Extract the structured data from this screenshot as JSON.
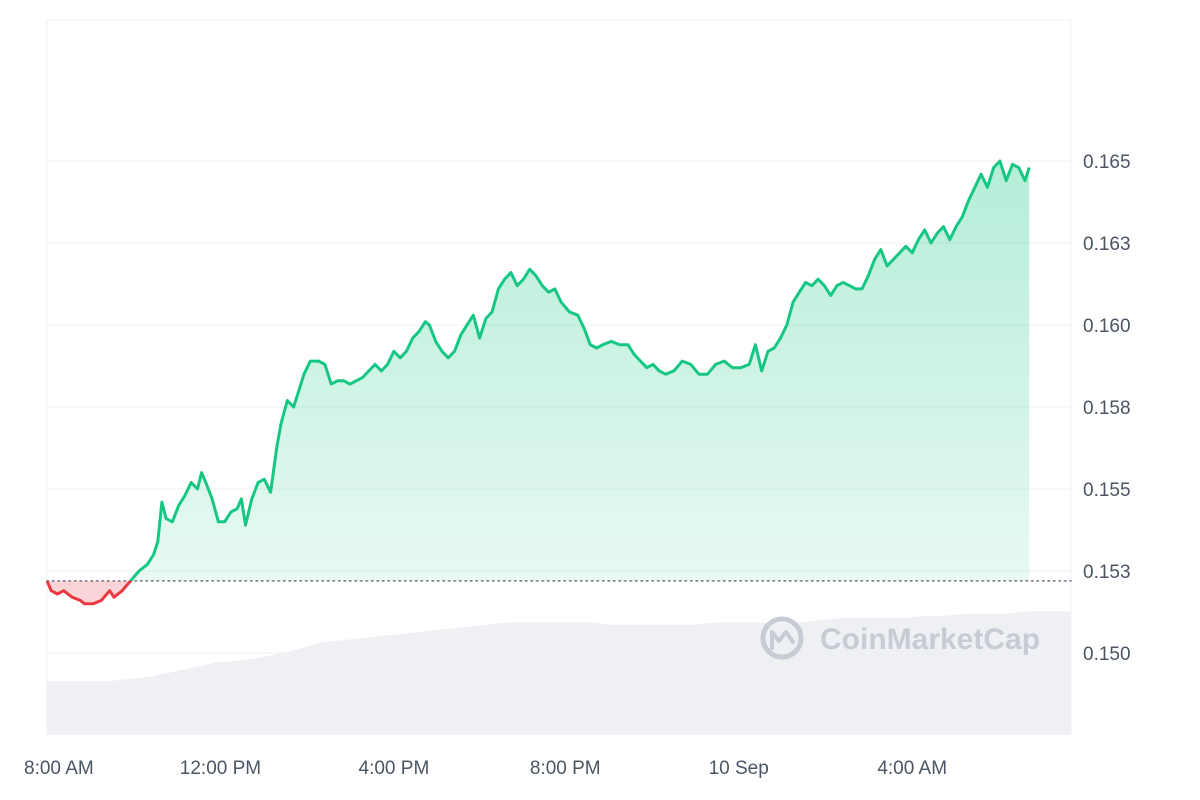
{
  "chart_data": {
    "type": "area",
    "watermark": "CoinMarketCap",
    "baseline": 0.1522,
    "ylim": [
      0.1475,
      0.1693
    ],
    "y_ticks": [
      {
        "value": 0.15,
        "label": "0.150"
      },
      {
        "value": 0.1525,
        "label": "0.153"
      },
      {
        "value": 0.155,
        "label": "0.155"
      },
      {
        "value": 0.1575,
        "label": "0.158"
      },
      {
        "value": 0.16,
        "label": "0.160"
      },
      {
        "value": 0.1625,
        "label": "0.163"
      },
      {
        "value": 0.165,
        "label": "0.165"
      }
    ],
    "xlim": [
      0,
      24.5
    ],
    "x_ticks": [
      {
        "value": 0,
        "label": "8:00 AM"
      },
      {
        "value": 4.15,
        "label": "12:00 PM"
      },
      {
        "value": 8.3,
        "label": "4:00 PM"
      },
      {
        "value": 12.4,
        "label": "8:00 PM"
      },
      {
        "value": 16.55,
        "label": "10 Sep"
      },
      {
        "value": 20.7,
        "label": "4:00 AM"
      }
    ],
    "colors": {
      "up": "#16c784",
      "down": "#ea3943",
      "grid": "#eff2f5",
      "volume": "#eef0f4",
      "text": "#4b5563"
    },
    "series": [
      {
        "values": [
          [
            0.0,
            0.1522
          ],
          [
            0.1,
            0.1519
          ],
          [
            0.25,
            0.1518
          ],
          [
            0.4,
            0.1519
          ],
          [
            0.6,
            0.1517
          ],
          [
            0.8,
            0.1516
          ],
          [
            0.9,
            0.1515
          ],
          [
            1.1,
            0.1515
          ],
          [
            1.3,
            0.1516
          ],
          [
            1.5,
            0.1519
          ],
          [
            1.6,
            0.1517
          ],
          [
            1.8,
            0.1519
          ],
          [
            2.0,
            0.1522
          ],
          [
            2.2,
            0.1525
          ],
          [
            2.4,
            0.1527
          ],
          [
            2.55,
            0.153
          ],
          [
            2.65,
            0.1534
          ],
          [
            2.75,
            0.1546
          ],
          [
            2.85,
            0.1541
          ],
          [
            3.0,
            0.154
          ],
          [
            3.15,
            0.1545
          ],
          [
            3.3,
            0.1548
          ],
          [
            3.45,
            0.1552
          ],
          [
            3.6,
            0.155
          ],
          [
            3.7,
            0.1555
          ],
          [
            3.8,
            0.1552
          ],
          [
            3.95,
            0.1547
          ],
          [
            4.1,
            0.154
          ],
          [
            4.25,
            0.154
          ],
          [
            4.4,
            0.1543
          ],
          [
            4.55,
            0.1544
          ],
          [
            4.65,
            0.1547
          ],
          [
            4.75,
            0.1539
          ],
          [
            4.9,
            0.1547
          ],
          [
            5.05,
            0.1552
          ],
          [
            5.2,
            0.1553
          ],
          [
            5.35,
            0.1549
          ],
          [
            5.5,
            0.1563
          ],
          [
            5.6,
            0.157
          ],
          [
            5.75,
            0.1577
          ],
          [
            5.9,
            0.1575
          ],
          [
            6.0,
            0.1579
          ],
          [
            6.15,
            0.1585
          ],
          [
            6.3,
            0.1589
          ],
          [
            6.5,
            0.1589
          ],
          [
            6.65,
            0.1588
          ],
          [
            6.8,
            0.1582
          ],
          [
            6.95,
            0.1583
          ],
          [
            7.1,
            0.1583
          ],
          [
            7.25,
            0.1582
          ],
          [
            7.4,
            0.1583
          ],
          [
            7.55,
            0.1584
          ],
          [
            7.7,
            0.1586
          ],
          [
            7.85,
            0.1588
          ],
          [
            8.0,
            0.1586
          ],
          [
            8.15,
            0.1588
          ],
          [
            8.3,
            0.1592
          ],
          [
            8.45,
            0.159
          ],
          [
            8.6,
            0.1592
          ],
          [
            8.75,
            0.1596
          ],
          [
            8.9,
            0.1598
          ],
          [
            9.05,
            0.1601
          ],
          [
            9.15,
            0.16
          ],
          [
            9.3,
            0.1595
          ],
          [
            9.45,
            0.1592
          ],
          [
            9.6,
            0.159
          ],
          [
            9.75,
            0.1592
          ],
          [
            9.9,
            0.1597
          ],
          [
            10.05,
            0.16
          ],
          [
            10.2,
            0.1603
          ],
          [
            10.35,
            0.1596
          ],
          [
            10.5,
            0.1602
          ],
          [
            10.65,
            0.1604
          ],
          [
            10.8,
            0.1611
          ],
          [
            10.95,
            0.1614
          ],
          [
            11.1,
            0.1616
          ],
          [
            11.25,
            0.1612
          ],
          [
            11.4,
            0.1614
          ],
          [
            11.55,
            0.1617
          ],
          [
            11.7,
            0.1615
          ],
          [
            11.85,
            0.1612
          ],
          [
            12.0,
            0.161
          ],
          [
            12.15,
            0.1611
          ],
          [
            12.3,
            0.1607
          ],
          [
            12.5,
            0.1604
          ],
          [
            12.7,
            0.1603
          ],
          [
            12.85,
            0.1599
          ],
          [
            13.0,
            0.1594
          ],
          [
            13.15,
            0.1593
          ],
          [
            13.3,
            0.1594
          ],
          [
            13.5,
            0.1595
          ],
          [
            13.7,
            0.1594
          ],
          [
            13.9,
            0.1594
          ],
          [
            14.05,
            0.1591
          ],
          [
            14.2,
            0.1589
          ],
          [
            14.35,
            0.1587
          ],
          [
            14.5,
            0.1588
          ],
          [
            14.65,
            0.1586
          ],
          [
            14.8,
            0.1585
          ],
          [
            15.0,
            0.1586
          ],
          [
            15.2,
            0.1589
          ],
          [
            15.4,
            0.1588
          ],
          [
            15.6,
            0.1585
          ],
          [
            15.8,
            0.1585
          ],
          [
            16.0,
            0.1588
          ],
          [
            16.2,
            0.1589
          ],
          [
            16.4,
            0.1587
          ],
          [
            16.6,
            0.1587
          ],
          [
            16.8,
            0.1588
          ],
          [
            16.95,
            0.1594
          ],
          [
            17.1,
            0.1586
          ],
          [
            17.25,
            0.1592
          ],
          [
            17.4,
            0.1593
          ],
          [
            17.55,
            0.1596
          ],
          [
            17.7,
            0.16
          ],
          [
            17.85,
            0.1607
          ],
          [
            18.0,
            0.161
          ],
          [
            18.15,
            0.1613
          ],
          [
            18.3,
            0.1612
          ],
          [
            18.45,
            0.1614
          ],
          [
            18.6,
            0.1612
          ],
          [
            18.75,
            0.1609
          ],
          [
            18.9,
            0.1612
          ],
          [
            19.05,
            0.1613
          ],
          [
            19.2,
            0.1612
          ],
          [
            19.35,
            0.1611
          ],
          [
            19.5,
            0.1611
          ],
          [
            19.65,
            0.1615
          ],
          [
            19.8,
            0.162
          ],
          [
            19.95,
            0.1623
          ],
          [
            20.1,
            0.1618
          ],
          [
            20.25,
            0.162
          ],
          [
            20.4,
            0.1622
          ],
          [
            20.55,
            0.1624
          ],
          [
            20.7,
            0.1622
          ],
          [
            20.85,
            0.1626
          ],
          [
            21.0,
            0.1629
          ],
          [
            21.15,
            0.1625
          ],
          [
            21.3,
            0.1628
          ],
          [
            21.45,
            0.163
          ],
          [
            21.6,
            0.1626
          ],
          [
            21.75,
            0.163
          ],
          [
            21.9,
            0.1633
          ],
          [
            22.05,
            0.1638
          ],
          [
            22.2,
            0.1642
          ],
          [
            22.35,
            0.1646
          ],
          [
            22.5,
            0.1642
          ],
          [
            22.65,
            0.1648
          ],
          [
            22.8,
            0.165
          ],
          [
            22.95,
            0.1644
          ],
          [
            23.1,
            0.1649
          ],
          [
            23.25,
            0.1648
          ],
          [
            23.4,
            0.1644
          ],
          [
            23.5,
            0.1648
          ]
        ]
      }
    ],
    "volume": [
      [
        0.0,
        0.12
      ],
      [
        0.5,
        0.12
      ],
      [
        1.0,
        0.12
      ],
      [
        1.5,
        0.12
      ],
      [
        2.0,
        0.125
      ],
      [
        2.5,
        0.13
      ],
      [
        3.0,
        0.14
      ],
      [
        3.5,
        0.15
      ],
      [
        4.0,
        0.16
      ],
      [
        4.5,
        0.165
      ],
      [
        5.0,
        0.17
      ],
      [
        5.5,
        0.18
      ],
      [
        6.0,
        0.19
      ],
      [
        6.5,
        0.205
      ],
      [
        7.0,
        0.21
      ],
      [
        7.5,
        0.215
      ],
      [
        8.0,
        0.22
      ],
      [
        8.5,
        0.225
      ],
      [
        9.0,
        0.23
      ],
      [
        9.5,
        0.235
      ],
      [
        10.0,
        0.24
      ],
      [
        10.5,
        0.245
      ],
      [
        11.0,
        0.25
      ],
      [
        11.5,
        0.25
      ],
      [
        12.0,
        0.25
      ],
      [
        12.5,
        0.25
      ],
      [
        13.0,
        0.25
      ],
      [
        13.5,
        0.245
      ],
      [
        14.0,
        0.245
      ],
      [
        14.5,
        0.245
      ],
      [
        15.0,
        0.245
      ],
      [
        15.5,
        0.245
      ],
      [
        16.0,
        0.25
      ],
      [
        16.5,
        0.25
      ],
      [
        17.0,
        0.25
      ],
      [
        17.5,
        0.25
      ],
      [
        18.0,
        0.25
      ],
      [
        18.5,
        0.255
      ],
      [
        19.0,
        0.26
      ],
      [
        19.5,
        0.26
      ],
      [
        20.0,
        0.26
      ],
      [
        20.5,
        0.26
      ],
      [
        21.0,
        0.265
      ],
      [
        21.5,
        0.265
      ],
      [
        22.0,
        0.27
      ],
      [
        22.5,
        0.27
      ],
      [
        23.0,
        0.27
      ],
      [
        23.5,
        0.275
      ]
    ]
  }
}
